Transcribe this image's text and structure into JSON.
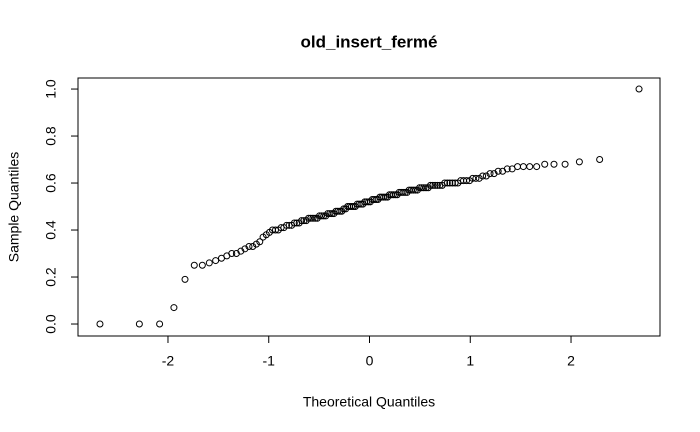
{
  "chart_data": {
    "type": "scatter",
    "title": "old_insert_fermé",
    "x_label": "Theoretical Quantiles",
    "y_label": "Sample Quantiles",
    "x": [
      -2.675,
      -2.284,
      -2.083,
      -1.941,
      -1.831,
      -1.739,
      -1.659,
      -1.59,
      -1.527,
      -1.469,
      -1.416,
      -1.367,
      -1.321,
      -1.277,
      -1.236,
      -1.196,
      -1.159,
      -1.123,
      -1.089,
      -1.056,
      -1.024,
      -0.993,
      -0.963,
      -0.933,
      -0.905,
      -0.877,
      -0.85,
      -0.823,
      -0.797,
      -0.772,
      -0.746,
      -0.722,
      -0.698,
      -0.674,
      -0.651,
      -0.628,
      -0.605,
      -0.583,
      -0.561,
      -0.539,
      -0.518,
      -0.497,
      -0.476,
      -0.455,
      -0.434,
      -0.414,
      -0.393,
      -0.373,
      -0.353,
      -0.333,
      -0.314,
      -0.294,
      -0.275,
      -0.256,
      -0.236,
      -0.217,
      -0.198,
      -0.179,
      -0.16,
      -0.141,
      -0.122,
      -0.103,
      -0.084,
      -0.066,
      -0.047,
      -0.028,
      -0.009,
      0.009,
      0.028,
      0.047,
      0.066,
      0.084,
      0.103,
      0.122,
      0.141,
      0.16,
      0.179,
      0.198,
      0.217,
      0.236,
      0.256,
      0.275,
      0.294,
      0.314,
      0.333,
      0.353,
      0.373,
      0.393,
      0.414,
      0.434,
      0.455,
      0.476,
      0.497,
      0.518,
      0.539,
      0.561,
      0.583,
      0.605,
      0.628,
      0.651,
      0.674,
      0.698,
      0.722,
      0.746,
      0.772,
      0.797,
      0.823,
      0.85,
      0.877,
      0.905,
      0.933,
      0.963,
      0.993,
      1.024,
      1.056,
      1.089,
      1.123,
      1.159,
      1.196,
      1.236,
      1.277,
      1.321,
      1.367,
      1.416,
      1.469,
      1.527,
      1.59,
      1.659,
      1.739,
      1.831,
      1.941,
      2.083,
      2.284,
      2.675
    ],
    "values": [
      0,
      0,
      0,
      0.07,
      0.19,
      0.25,
      0.25,
      0.26,
      0.27,
      0.28,
      0.29,
      0.3,
      0.3,
      0.31,
      0.32,
      0.33,
      0.33,
      0.34,
      0.35,
      0.37,
      0.38,
      0.39,
      0.4,
      0.4,
      0.4,
      0.41,
      0.41,
      0.42,
      0.42,
      0.42,
      0.43,
      0.43,
      0.43,
      0.44,
      0.44,
      0.44,
      0.45,
      0.45,
      0.45,
      0.45,
      0.45,
      0.46,
      0.46,
      0.46,
      0.46,
      0.47,
      0.47,
      0.47,
      0.47,
      0.48,
      0.48,
      0.48,
      0.48,
      0.49,
      0.49,
      0.5,
      0.5,
      0.5,
      0.5,
      0.5,
      0.51,
      0.51,
      0.51,
      0.51,
      0.52,
      0.52,
      0.52,
      0.52,
      0.53,
      0.53,
      0.53,
      0.53,
      0.54,
      0.54,
      0.54,
      0.54,
      0.54,
      0.55,
      0.55,
      0.55,
      0.55,
      0.55,
      0.56,
      0.56,
      0.56,
      0.56,
      0.56,
      0.57,
      0.57,
      0.57,
      0.57,
      0.57,
      0.58,
      0.58,
      0.58,
      0.58,
      0.58,
      0.59,
      0.59,
      0.59,
      0.59,
      0.59,
      0.59,
      0.6,
      0.6,
      0.6,
      0.6,
      0.6,
      0.6,
      0.61,
      0.61,
      0.61,
      0.61,
      0.62,
      0.62,
      0.62,
      0.63,
      0.63,
      0.64,
      0.64,
      0.65,
      0.65,
      0.66,
      0.66,
      0.67,
      0.67,
      0.67,
      0.67,
      0.68,
      0.68,
      0.68,
      0.69,
      0.7,
      1.0
    ],
    "color": "#000000",
    "xlim": [
      -2.893,
      2.883
    ],
    "ylim": [
      -0.051,
      1.047
    ],
    "xticks": [
      -2,
      -1,
      0,
      1,
      2
    ],
    "yticks": [
      {
        "value": 0,
        "label": "0.0"
      },
      0.2,
      0.4,
      0.6,
      0.8,
      {
        "value": 1,
        "label": "1.0"
      }
    ]
  }
}
